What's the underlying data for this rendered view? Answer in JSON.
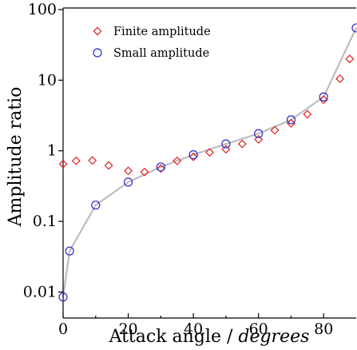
{
  "chart_data": {
    "type": "scatter",
    "xlabel_prefix": "Attack angle / ",
    "xlabel_unit": "degrees",
    "ylabel": "Amplitude ratio",
    "xlim": [
      0,
      90
    ],
    "ylim": [
      0.005,
      100
    ],
    "yscale": "log",
    "grid": false,
    "legend_position": "top-left",
    "x_ticks": [
      0,
      20,
      40,
      60,
      80
    ],
    "x_tick_labels": [
      "0",
      "20",
      "40",
      "60",
      "80"
    ],
    "y_ticks": [
      0.01,
      0.1,
      1,
      10,
      100
    ],
    "y_tick_labels": [
      "0.01",
      "0.1",
      "1",
      "10",
      "100"
    ],
    "colors": {
      "finite": "#e02020",
      "small": "#2a2acc",
      "curve": "#bdbdbd"
    },
    "series": [
      {
        "name": "Finite amplitude",
        "marker": "diamond",
        "color": "#e02020",
        "x": [
          0,
          4,
          9,
          14,
          20,
          25,
          30,
          35,
          40,
          45,
          50,
          55,
          60,
          65,
          70,
          75,
          80,
          85,
          88
        ],
        "y": [
          0.65,
          0.72,
          0.73,
          0.62,
          0.52,
          0.5,
          0.56,
          0.72,
          0.82,
          0.95,
          1.05,
          1.25,
          1.45,
          1.95,
          2.45,
          3.3,
          5.3,
          10.5,
          20
        ]
      },
      {
        "name": "Small amplitude",
        "marker": "circle",
        "color": "#2a2acc",
        "x": [
          0,
          2,
          10,
          20,
          30,
          40,
          50,
          60,
          70,
          80,
          90
        ],
        "y": [
          0.0085,
          0.038,
          0.17,
          0.36,
          0.59,
          0.88,
          1.25,
          1.75,
          2.75,
          5.8,
          55
        ]
      }
    ]
  }
}
